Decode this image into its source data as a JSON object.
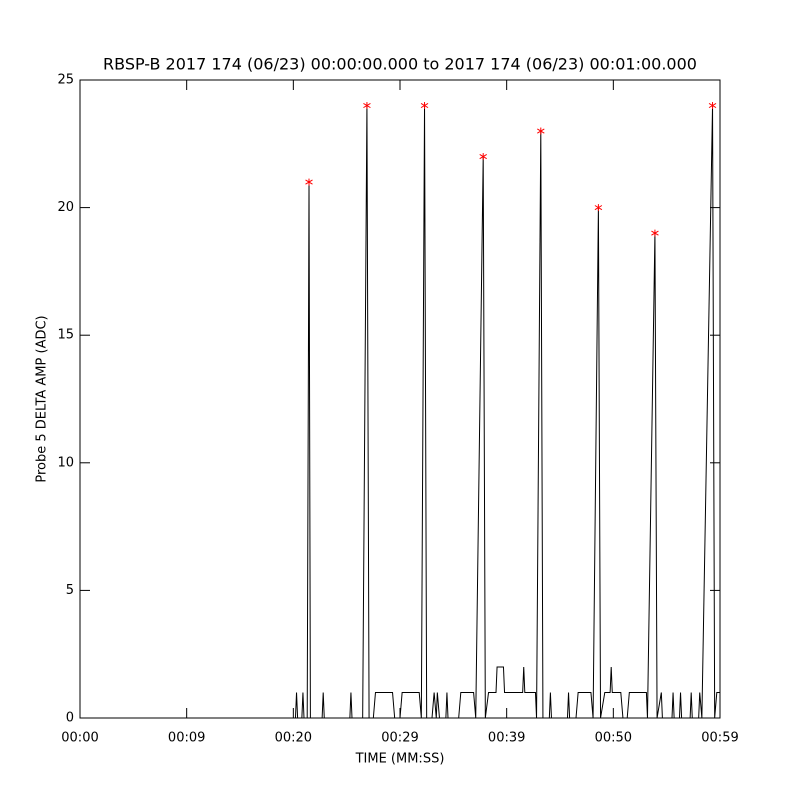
{
  "chart_data": {
    "type": "line",
    "title": "RBSP-B 2017 174 (06/23) 00:00:00.000 to 2017 174 (06/23) 00:01:00.000",
    "x_label": "TIME (MM:SS)",
    "y_label": "Probe 5 DELTA AMP (ADC)",
    "color": "#000000",
    "x": [
      0,
      20.2,
      20.3,
      20.4,
      20.8,
      20.9,
      21.0,
      21.3,
      21.47,
      21.6,
      22.7,
      22.8,
      22.9,
      25.3,
      25.4,
      25.5,
      26.5,
      26.9,
      27.1,
      27.5,
      27.7,
      29.3,
      29.5,
      30.0,
      30.2,
      31.8,
      32.0,
      32.3,
      32.5,
      33.0,
      33.2,
      33.4,
      33.5,
      33.7,
      34.3,
      34.4,
      34.5,
      35.5,
      35.7,
      36.9,
      37.1,
      37.8,
      38.0,
      38.3,
      39.0,
      39.1,
      39.7,
      39.8,
      41.5,
      41.6,
      41.7,
      42.7,
      42.8,
      43.2,
      43.4,
      44.0,
      44.1,
      44.2,
      45.7,
      45.8,
      45.9,
      46.5,
      46.7,
      47.9,
      48.1,
      48.6,
      48.8,
      49.2,
      49.7,
      49.8,
      49.9,
      50.7,
      50.9,
      51.3,
      51.5,
      53.1,
      53.2,
      53.9,
      54.1,
      54.5,
      54.6,
      55.5,
      55.6,
      55.7,
      56.2,
      56.3,
      56.4,
      57.2,
      57.3,
      57.4,
      58.0,
      58.1,
      58.3,
      59.3,
      59.5,
      59.7,
      60
    ],
    "values": [
      0,
      0,
      1,
      0,
      0,
      1,
      0,
      0,
      21,
      0,
      0,
      1,
      0,
      0,
      1,
      0,
      0,
      24,
      0,
      0,
      1,
      1,
      0,
      0,
      1,
      1,
      0,
      24,
      0,
      0,
      1,
      0,
      1,
      0,
      0,
      1,
      0,
      0,
      1,
      1,
      0,
      22,
      0,
      1,
      1,
      2,
      2,
      1,
      1,
      2,
      1,
      1,
      0,
      23,
      0,
      0,
      1,
      0,
      0,
      1,
      0,
      0,
      1,
      1,
      0,
      20,
      0,
      1,
      1,
      2,
      1,
      1,
      0,
      0,
      1,
      1,
      0,
      19,
      0,
      1,
      0,
      0,
      1,
      0,
      0,
      1,
      0,
      0,
      1,
      0,
      0,
      1,
      0,
      24,
      0,
      1,
      1
    ],
    "peak_color": "#ff0000",
    "peak_x": [
      21.47,
      26.9,
      32.3,
      37.8,
      43.2,
      48.6,
      53.9,
      59.3
    ],
    "peak_values": [
      21,
      24,
      24,
      22,
      23,
      20,
      19,
      24
    ],
    "xlim": [
      0,
      60
    ],
    "ylim": [
      0,
      25
    ],
    "xticks": [
      {
        "value": 0,
        "label": "00:00"
      },
      {
        "value": 10,
        "label": "00:09"
      },
      {
        "value": 20,
        "label": "00:20"
      },
      {
        "value": 30,
        "label": "00:29"
      },
      {
        "value": 40,
        "label": "00:39"
      },
      {
        "value": 50,
        "label": "00:50"
      },
      {
        "value": 60,
        "label": "00:59"
      }
    ],
    "yticks": [
      0,
      5,
      10,
      15,
      20,
      25
    ]
  }
}
